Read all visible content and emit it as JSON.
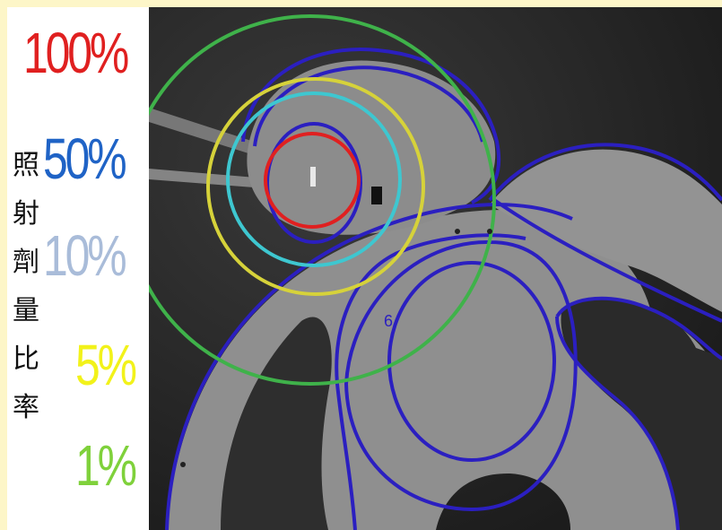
{
  "legend": {
    "caption_chars": [
      "照",
      "射",
      "劑",
      "量",
      "比",
      "率"
    ],
    "levels": [
      {
        "label": "100%",
        "color": "#e02020"
      },
      {
        "label": "50%",
        "color": "#1f63c6"
      },
      {
        "label": "10%",
        "color": "#a9bcd9"
      },
      {
        "label": "5%",
        "color": "#f2f21a"
      },
      {
        "label": "1%",
        "color": "#7fd13b"
      }
    ]
  },
  "scan": {
    "annotation": "6",
    "contour_colors": {
      "red": "#e02020",
      "cyan": "#3ec7d0",
      "yellow": "#d6d23a",
      "green": "#3fb24a",
      "blue": "#2b1fc0"
    }
  }
}
